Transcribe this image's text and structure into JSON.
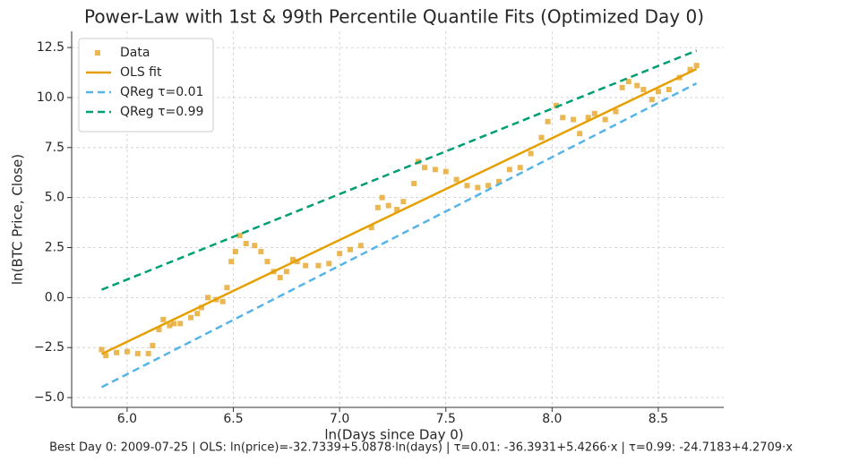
{
  "chart_data": {
    "type": "scatter",
    "title": "Power-Law with 1st & 99th Percentile Quantile Fits (Optimized Day 0)",
    "x_label": "ln(Days since Day 0)",
    "y_label": "ln(BTC Price, Close)",
    "footnote": "Best Day 0: 2009-07-25 | OLS: ln(price)=-32.7339+5.0878·ln(days) | τ=0.01: -36.3931+5.4266·x | τ=0.99: -24.7183+4.2709·x",
    "xlim": [
      5.739,
      8.808
    ],
    "ylim": [
      -5.49,
      13.31
    ],
    "xticks": [
      {
        "value": 6,
        "label": "6.0"
      },
      {
        "value": 6.5,
        "label": "6.5"
      },
      {
        "value": 7,
        "label": "7.0"
      },
      {
        "value": 7.5,
        "label": "7.5"
      },
      {
        "value": 8,
        "label": "8.0"
      },
      {
        "value": 8.5,
        "label": "8.5"
      }
    ],
    "yticks": [
      {
        "value": -5,
        "label": "−5.0"
      },
      {
        "value": -2.5,
        "label": "−2.5"
      },
      {
        "value": 0,
        "label": "0.0"
      },
      {
        "value": 2.5,
        "label": "2.5"
      },
      {
        "value": 5,
        "label": "5.0"
      },
      {
        "value": 7.5,
        "label": "7.5"
      },
      {
        "value": 10,
        "label": "10.0"
      },
      {
        "value": 12.5,
        "label": "12.5"
      }
    ],
    "grid": true,
    "legend": "upper left",
    "series": [
      {
        "name": "Data",
        "color": "#e6a528",
        "marker": "square",
        "x": [
          5.88,
          5.9,
          5.95,
          6.0,
          6.05,
          6.1,
          6.12,
          6.15,
          6.17,
          6.2,
          6.22,
          6.25,
          6.3,
          6.33,
          6.35,
          6.38,
          6.42,
          6.45,
          6.47,
          6.49,
          6.51,
          6.53,
          6.56,
          6.6,
          6.63,
          6.66,
          6.69,
          6.72,
          6.75,
          6.78,
          6.8,
          6.84,
          6.9,
          6.95,
          7.0,
          7.05,
          7.1,
          7.15,
          7.18,
          7.2,
          7.23,
          7.27,
          7.3,
          7.35,
          7.37,
          7.4,
          7.45,
          7.5,
          7.55,
          7.6,
          7.65,
          7.7,
          7.75,
          7.8,
          7.85,
          7.9,
          7.95,
          7.98,
          8.02,
          8.05,
          8.1,
          8.13,
          8.17,
          8.2,
          8.25,
          8.3,
          8.33,
          8.36,
          8.4,
          8.43,
          8.47,
          8.5,
          8.55,
          8.6,
          8.65,
          8.68
        ],
        "values": [
          -2.6,
          -2.9,
          -2.75,
          -2.7,
          -2.8,
          -2.8,
          -2.4,
          -1.6,
          -1.1,
          -1.4,
          -1.3,
          -1.3,
          -1.0,
          -0.8,
          -0.5,
          0.0,
          -0.1,
          -0.2,
          0.5,
          1.8,
          2.3,
          3.1,
          2.7,
          2.6,
          2.3,
          1.8,
          1.3,
          1.0,
          1.3,
          1.9,
          1.8,
          1.6,
          1.6,
          1.7,
          2.2,
          2.4,
          2.6,
          3.5,
          4.5,
          5.0,
          4.6,
          4.4,
          4.8,
          5.7,
          6.8,
          6.5,
          6.4,
          6.3,
          5.9,
          5.6,
          5.5,
          5.6,
          5.8,
          6.4,
          6.5,
          7.2,
          8.0,
          8.8,
          9.6,
          9.0,
          8.9,
          8.2,
          9.0,
          9.2,
          8.9,
          9.3,
          10.5,
          10.8,
          10.6,
          10.4,
          9.9,
          10.3,
          10.4,
          11.0,
          11.4,
          11.6
        ]
      },
      {
        "name": "OLS fit",
        "color": "#e69f00",
        "marker": "line",
        "x": [
          5.88,
          8.68
        ],
        "values": [
          -2.82,
          11.43
        ]
      },
      {
        "name": "QReg τ=0.01",
        "color": "#56b4e9",
        "marker": "dashed",
        "x": [
          5.88,
          8.68
        ],
        "values": [
          -4.48,
          10.71
        ]
      },
      {
        "name": "QReg τ=0.99",
        "color": "#009e73",
        "marker": "dashed",
        "x": [
          5.88,
          8.68
        ],
        "values": [
          0.39,
          12.35
        ]
      }
    ]
  }
}
